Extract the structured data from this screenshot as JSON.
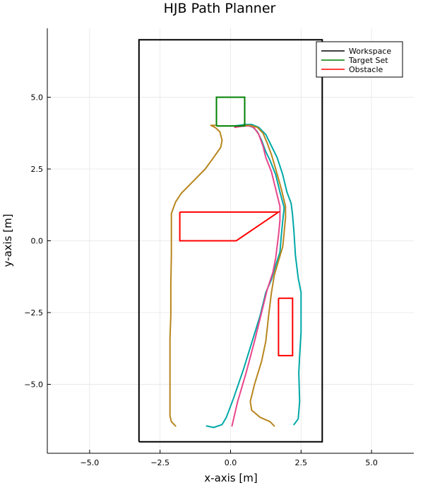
{
  "chart_data": {
    "type": "line",
    "title": "HJB Path Planner",
    "xlabel": "x-axis [m]",
    "ylabel": "y-axis [m]",
    "xlim": [
      -6.5,
      6.5
    ],
    "ylim": [
      -7.4,
      7.4
    ],
    "xticks": [
      -5.0,
      -2.5,
      0.0,
      2.5,
      5.0
    ],
    "yticks": [
      -5.0,
      -2.5,
      0.0,
      2.5,
      5.0
    ],
    "xtick_labels": [
      "−5.0",
      "−2.5",
      "0.0",
      "2.5",
      "5.0"
    ],
    "ytick_labels": [
      "−5.0",
      "−2.5",
      "0.0",
      "2.5",
      "5.0"
    ],
    "grid": true,
    "legend_position": "top-right",
    "legend": [
      {
        "name": "Workspace",
        "color": "#000000"
      },
      {
        "name": "Target Set",
        "color": "#008000"
      },
      {
        "name": "Obstacle",
        "color": "#ff0000"
      }
    ],
    "shapes": [
      {
        "name": "Workspace",
        "color": "#000000",
        "width": 2,
        "points": [
          [
            -3.25,
            -7
          ],
          [
            3.25,
            -7
          ],
          [
            3.25,
            7
          ],
          [
            -3.25,
            7
          ],
          [
            -3.25,
            -7
          ]
        ]
      },
      {
        "name": "Target Set",
        "color": "#008000",
        "width": 2,
        "points": [
          [
            -0.5,
            4
          ],
          [
            0.5,
            4
          ],
          [
            0.5,
            5
          ],
          [
            -0.5,
            5
          ],
          [
            -0.5,
            4
          ]
        ]
      },
      {
        "name": "Obstacle",
        "color": "#ff0000",
        "width": 2,
        "points": [
          [
            -1.8,
            1
          ],
          [
            1.7,
            1
          ],
          [
            0.2,
            0
          ],
          [
            -1.8,
            0
          ],
          [
            -1.8,
            1
          ]
        ]
      },
      {
        "name": "Obstacle",
        "color": "#ff0000",
        "width": 2,
        "points": [
          [
            1.7,
            -2
          ],
          [
            2.2,
            -2
          ],
          [
            2.2,
            -4
          ],
          [
            1.7,
            -4
          ],
          [
            1.7,
            -2
          ]
        ]
      }
    ],
    "trajectories": [
      {
        "color": "#00a8a8",
        "points": [
          [
            -0.85,
            -6.45
          ],
          [
            -0.6,
            -6.5
          ],
          [
            -0.3,
            -6.4
          ],
          [
            -0.15,
            -6.15
          ],
          [
            0.1,
            -5.5
          ],
          [
            0.45,
            -4.5
          ],
          [
            0.8,
            -3.4
          ],
          [
            1.05,
            -2.6
          ],
          [
            1.25,
            -1.8
          ],
          [
            1.45,
            -1.35
          ],
          [
            1.6,
            -0.85
          ],
          [
            1.75,
            -0.4
          ],
          [
            1.8,
            0.2
          ],
          [
            1.85,
            0.7
          ],
          [
            1.9,
            1.15
          ],
          [
            1.75,
            1.7
          ],
          [
            1.6,
            2.3
          ],
          [
            1.4,
            2.8
          ],
          [
            1.25,
            3.1
          ],
          [
            1.1,
            3.5
          ],
          [
            0.95,
            3.8
          ],
          [
            0.8,
            3.95
          ],
          [
            0.6,
            4.02
          ],
          [
            0.35,
            4.02
          ],
          [
            0.15,
            3.98
          ]
        ]
      },
      {
        "color": "#e8468c",
        "points": [
          [
            0.05,
            -6.45
          ],
          [
            0.25,
            -5.6
          ],
          [
            0.55,
            -4.6
          ],
          [
            0.85,
            -3.5
          ],
          [
            1.1,
            -2.5
          ],
          [
            1.3,
            -1.7
          ],
          [
            1.5,
            -1.1
          ],
          [
            1.6,
            -0.6
          ],
          [
            1.7,
            0.2
          ],
          [
            1.75,
            0.7
          ],
          [
            1.75,
            1.2
          ],
          [
            1.6,
            1.8
          ],
          [
            1.45,
            2.4
          ],
          [
            1.25,
            2.9
          ],
          [
            1.15,
            3.3
          ],
          [
            1.0,
            3.7
          ],
          [
            0.85,
            3.92
          ],
          [
            0.7,
            4.0
          ],
          [
            0.5,
            4.0
          ],
          [
            0.35,
            3.98
          ],
          [
            0.15,
            3.95
          ]
        ]
      },
      {
        "color": "#00a8a8",
        "points": [
          [
            2.25,
            -6.4
          ],
          [
            2.4,
            -6.2
          ],
          [
            2.45,
            -5.6
          ],
          [
            2.42,
            -4.6
          ],
          [
            2.45,
            -4.0
          ],
          [
            2.5,
            -3.2
          ],
          [
            2.5,
            -2.4
          ],
          [
            2.5,
            -1.8
          ],
          [
            2.4,
            -1.3
          ],
          [
            2.3,
            -0.5
          ],
          [
            2.25,
            0.3
          ],
          [
            2.2,
            0.9
          ],
          [
            2.15,
            1.3
          ],
          [
            2.0,
            1.7
          ],
          [
            1.85,
            2.3
          ],
          [
            1.65,
            2.9
          ],
          [
            1.45,
            3.3
          ],
          [
            1.25,
            3.7
          ],
          [
            1.0,
            3.95
          ],
          [
            0.75,
            4.05
          ],
          [
            0.5,
            4.05
          ],
          [
            0.3,
            4.02
          ],
          [
            0.15,
            4.0
          ]
        ]
      },
      {
        "color": "#b8861e",
        "points": [
          [
            -1.95,
            -6.45
          ],
          [
            -2.1,
            -6.3
          ],
          [
            -2.15,
            -6.1
          ],
          [
            -2.15,
            -5.5
          ],
          [
            -2.15,
            -4.2
          ],
          [
            -2.15,
            -3.4
          ],
          [
            -2.12,
            -2.6
          ],
          [
            -2.12,
            -1.5
          ],
          [
            -2.1,
            -0.5
          ],
          [
            -2.1,
            0.4
          ],
          [
            -2.1,
            0.95
          ],
          [
            -1.95,
            1.35
          ],
          [
            -1.75,
            1.65
          ],
          [
            -1.4,
            2.0
          ],
          [
            -0.9,
            2.5
          ],
          [
            -0.6,
            2.9
          ],
          [
            -0.35,
            3.25
          ],
          [
            -0.3,
            3.5
          ],
          [
            -0.38,
            3.8
          ],
          [
            -0.55,
            3.95
          ],
          [
            -0.7,
            4.02
          ],
          [
            -0.55,
            4.02
          ]
        ]
      },
      {
        "color": "#b8861e",
        "points": [
          [
            1.55,
            -6.45
          ],
          [
            1.4,
            -6.3
          ],
          [
            1.05,
            -6.15
          ],
          [
            0.75,
            -5.9
          ],
          [
            0.7,
            -5.6
          ],
          [
            0.85,
            -5.0
          ],
          [
            1.1,
            -4.2
          ],
          [
            1.25,
            -3.5
          ],
          [
            1.35,
            -2.6
          ],
          [
            1.45,
            -1.8
          ],
          [
            1.55,
            -1.2
          ],
          [
            1.7,
            -0.7
          ],
          [
            1.85,
            -0.2
          ],
          [
            1.9,
            0.3
          ],
          [
            1.95,
            0.8
          ],
          [
            1.95,
            1.2
          ],
          [
            1.8,
            1.8
          ],
          [
            1.6,
            2.5
          ],
          [
            1.45,
            3.0
          ],
          [
            1.3,
            3.4
          ],
          [
            1.15,
            3.75
          ],
          [
            0.95,
            3.95
          ],
          [
            0.7,
            4.02
          ],
          [
            0.5,
            4.02
          ],
          [
            0.35,
            4.0
          ]
        ]
      }
    ]
  }
}
